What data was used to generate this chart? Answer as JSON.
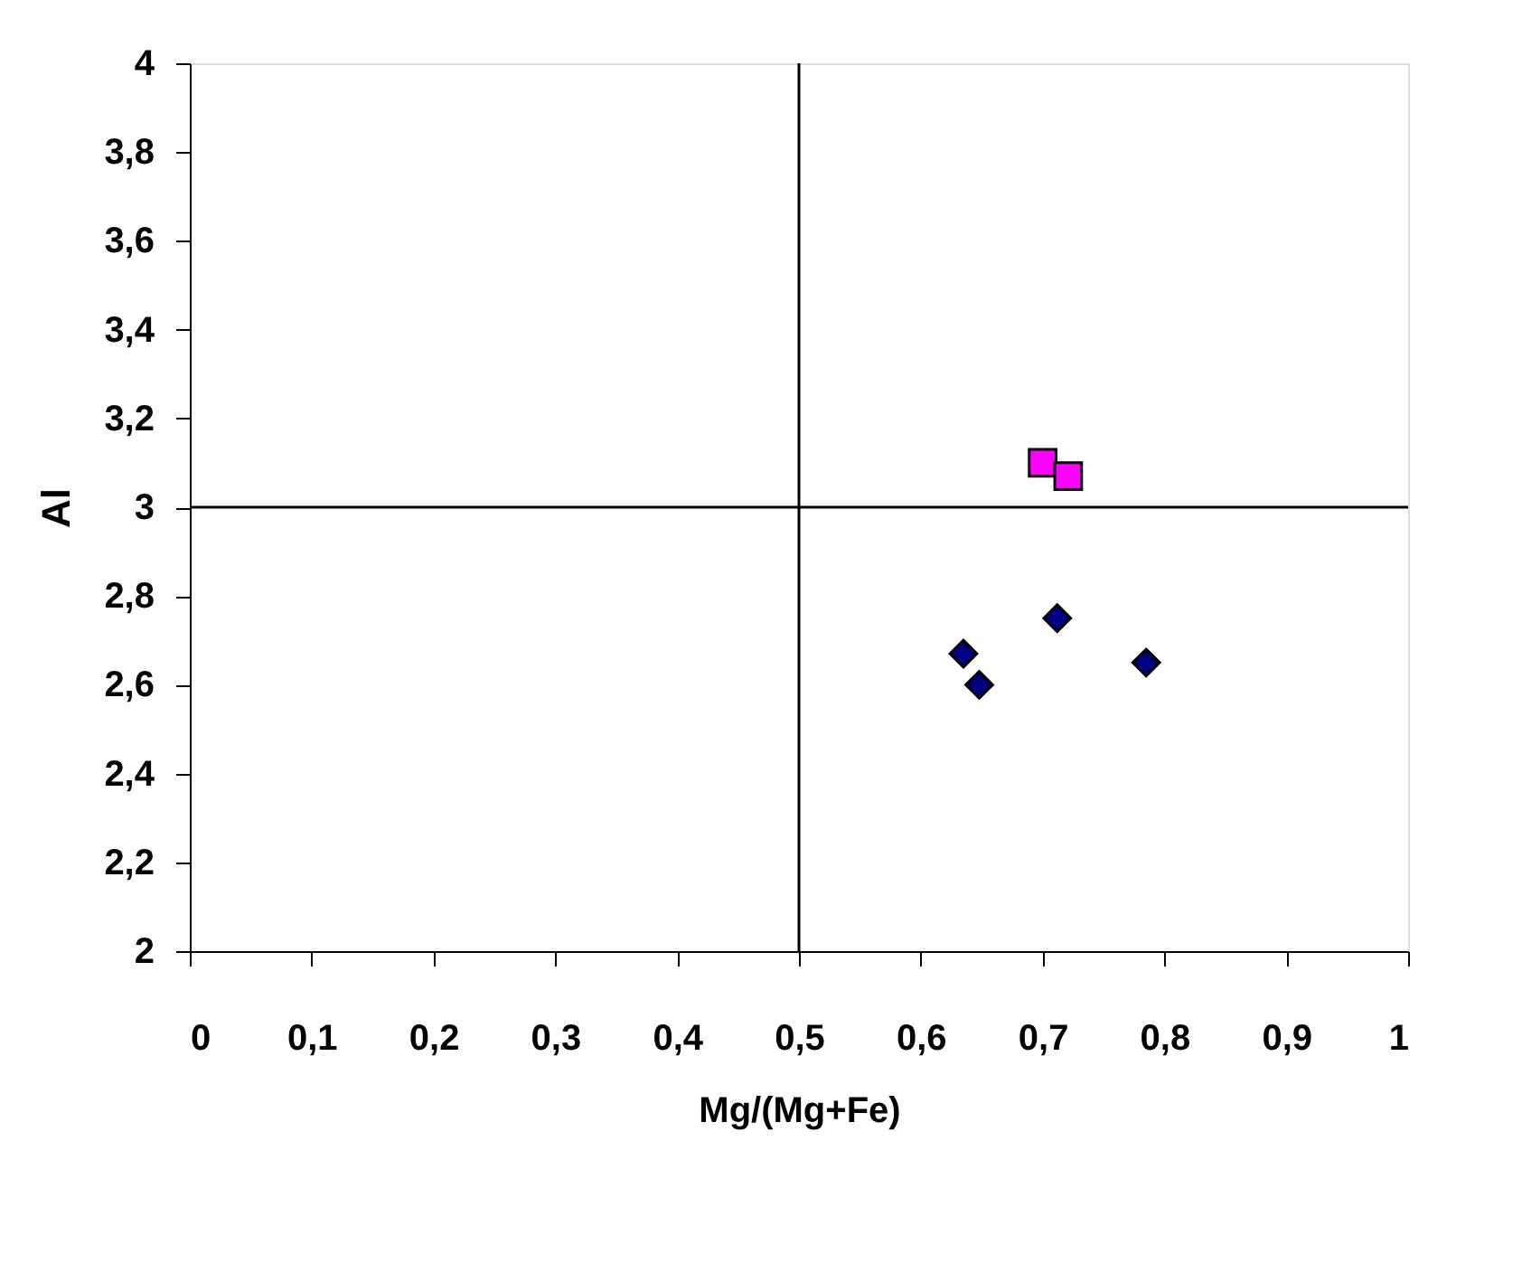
{
  "chart_data": {
    "type": "scatter",
    "xlabel": "Mg/(Mg+Fe)",
    "ylabel": "Al",
    "xlim": [
      0,
      1
    ],
    "ylim": [
      2,
      4
    ],
    "xticks": [
      0,
      {
        "value": 0.1,
        "label": "0,1"
      },
      {
        "value": 0.2,
        "label": "0,2"
      },
      {
        "value": 0.3,
        "label": "0,3"
      },
      {
        "value": 0.4,
        "label": "0,4"
      },
      {
        "value": 0.5,
        "label": "0,5"
      },
      {
        "value": 0.6,
        "label": "0,6"
      },
      {
        "value": 0.7,
        "label": "0,7"
      },
      {
        "value": 0.8,
        "label": "0,8"
      },
      {
        "value": 0.9,
        "label": "0,9"
      },
      1
    ],
    "yticks": [
      2,
      {
        "value": 2.2,
        "label": "2,2"
      },
      {
        "value": 2.4,
        "label": "2,4"
      },
      {
        "value": 2.6,
        "label": "2,6"
      },
      {
        "value": 2.8,
        "label": "2,8"
      },
      3,
      {
        "value": 3.2,
        "label": "3,2"
      },
      {
        "value": 3.4,
        "label": "3,4"
      },
      {
        "value": 3.6,
        "label": "3,6"
      },
      {
        "value": 3.8,
        "label": "3,8"
      },
      4
    ],
    "grid": false,
    "ref_lines": [
      {
        "axis": "x",
        "value": 0.5,
        "color": "#000000"
      },
      {
        "axis": "y",
        "value": 3,
        "color": "#000000"
      }
    ],
    "series": [
      {
        "color": "#000080",
        "marker": "diamond",
        "x": [
          0.635,
          0.648,
          0.712,
          0.785
        ],
        "values": [
          2.67,
          2.6,
          2.75,
          2.65
        ]
      },
      {
        "color": "#ff00ff",
        "marker": "square",
        "x": [
          0.7,
          0.721
        ],
        "values": [
          3.1,
          3.07
        ]
      }
    ]
  }
}
